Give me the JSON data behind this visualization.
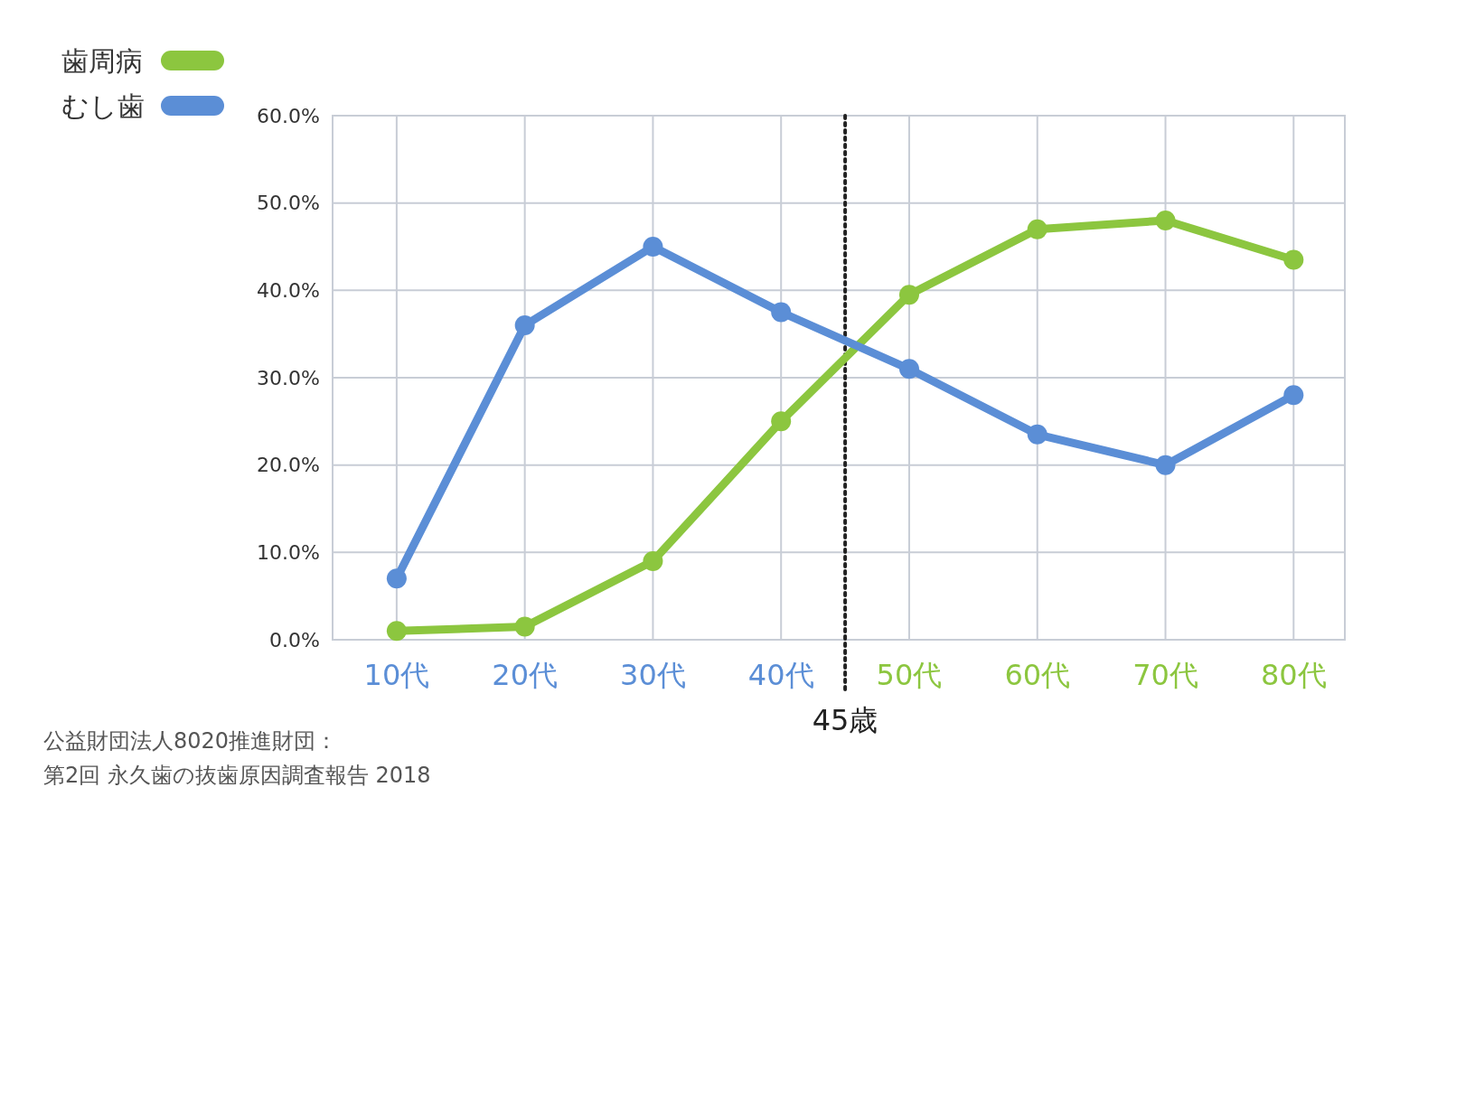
{
  "chart_data": {
    "type": "line",
    "x": [
      10,
      20,
      30,
      40,
      50,
      60,
      70,
      80
    ],
    "xlim": [
      5,
      84
    ],
    "xticks": [
      {
        "value": 10,
        "label": "10代"
      },
      {
        "value": 20,
        "label": "20代"
      },
      {
        "value": 30,
        "label": "30代"
      },
      {
        "value": 40,
        "label": "40代"
      },
      {
        "value": 50,
        "label": "50代"
      },
      {
        "value": 60,
        "label": "60代"
      },
      {
        "value": 70,
        "label": "70代"
      },
      {
        "value": 80,
        "label": "80代"
      }
    ],
    "ylim": [
      0,
      60
    ],
    "yticks": [
      {
        "value": 0,
        "label": "0.0%"
      },
      {
        "value": 10,
        "label": "10.0%"
      },
      {
        "value": 20,
        "label": "20.0%"
      },
      {
        "value": 30,
        "label": "30.0%"
      },
      {
        "value": 40,
        "label": "40.0%"
      },
      {
        "value": 50,
        "label": "50.0%"
      },
      {
        "value": 60,
        "label": "60.0%"
      }
    ],
    "series": [
      {
        "name": "歯周病",
        "color": "#8cc63f",
        "values": [
          1,
          1.5,
          9,
          25,
          39.5,
          47,
          48,
          43.5
        ]
      },
      {
        "name": "むし歯",
        "color": "#5b8ed6",
        "values": [
          7,
          36,
          45,
          37.5,
          31,
          23.5,
          20,
          28
        ]
      }
    ],
    "ref_lines": [
      {
        "axis": "x",
        "value": 45,
        "label": "45歳",
        "line_style": "dotted",
        "color": "#222222"
      }
    ],
    "annotations": [
      "公益財団法人8020推進財団：",
      "第2回 永久歯の抜歯原因調査報告 2018"
    ],
    "grid": true,
    "legend": "top left",
    "marker": "circle",
    "line_style": "solid"
  }
}
